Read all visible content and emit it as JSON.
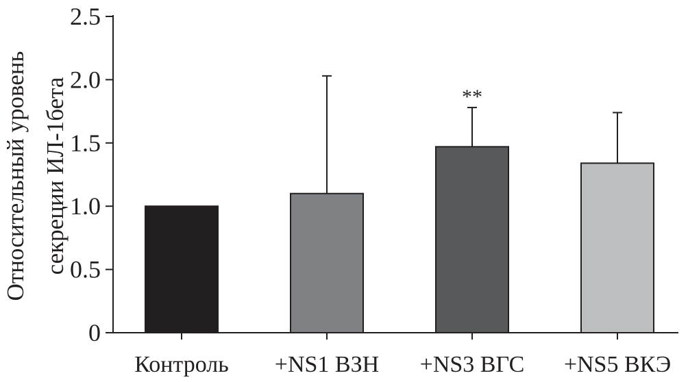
{
  "chart_data": {
    "type": "bar",
    "categories": [
      "Контроль",
      "+NS1 ВЗН",
      "+NS3 ВГС",
      "+NS5 ВКЭ"
    ],
    "values": [
      1.0,
      1.1,
      1.47,
      1.34
    ],
    "error_upper": [
      null,
      2.03,
      1.78,
      1.74
    ],
    "colors": [
      "#231f20",
      "#808184",
      "#58595b",
      "#bcbec0"
    ],
    "annotations": [
      {
        "category": "+NS3 ВГС",
        "text": "**"
      }
    ],
    "ylabel_lines": [
      "Относительный уровень",
      "секреции ИЛ-1бета"
    ],
    "yticks": [
      {
        "value": 0,
        "label": "0"
      },
      {
        "value": 0.5,
        "label": "0.5"
      },
      {
        "value": 1.0,
        "label": "1.0"
      },
      {
        "value": 1.5,
        "label": "1.5"
      },
      {
        "value": 2.0,
        "label": "2.0"
      },
      {
        "value": 2.5,
        "label": "2.5"
      }
    ],
    "ylim": [
      0,
      2.5
    ],
    "grid": false,
    "legend": false
  }
}
